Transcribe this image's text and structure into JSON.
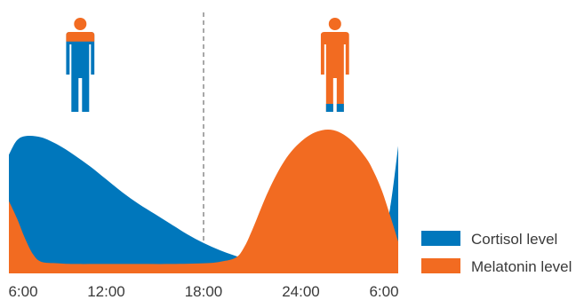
{
  "chart_data": {
    "type": "area",
    "x_ticks": [
      "6:00",
      "12:00",
      "18:00",
      "24:00",
      "6:00"
    ],
    "x_range_hours": [
      6,
      30
    ],
    "marker_hour": 18,
    "series": [
      {
        "name": "Cortisol level",
        "color": "#0077bc",
        "x_hours": [
          6,
          6.5,
          7.1,
          8,
          9,
          10,
          11,
          12,
          13,
          14,
          15,
          16,
          17,
          18,
          19,
          20,
          21,
          22,
          23,
          24,
          25,
          26,
          27,
          27.5,
          28,
          28.5,
          29,
          29.5,
          30
        ],
        "values": [
          82,
          92,
          95,
          94,
          89,
          82,
          74,
          65,
          56,
          48,
          41,
          34,
          27,
          21,
          16,
          12,
          9,
          7,
          6,
          5.5,
          5,
          5,
          5.5,
          6.5,
          9,
          14,
          24,
          45,
          88
        ]
      },
      {
        "name": "Melatonin level",
        "color": "#f26b21",
        "x_hours": [
          6,
          6.5,
          7,
          7.5,
          8,
          9,
          10,
          12,
          14,
          16,
          18,
          19,
          20,
          20.5,
          21,
          22,
          23,
          24,
          25,
          26,
          27,
          28,
          28.5,
          29,
          29.5,
          30
        ],
        "values": [
          50,
          38,
          24,
          13,
          8,
          7,
          6.5,
          6.5,
          6.5,
          6.5,
          7,
          8,
          11,
          18,
          30,
          57,
          78,
          91,
          98,
          99,
          93,
          80,
          70,
          57,
          40,
          22
        ]
      }
    ],
    "icons": [
      {
        "name": "person-cortisol-high-icon",
        "hour": 10.4,
        "fill_top_fraction": 0.12,
        "top_color": "#f26b21",
        "body_color": "#0077bc"
      },
      {
        "name": "person-melatonin-high-icon",
        "hour": 26.1,
        "fill_bottom_fraction": 0.1,
        "top_color": "#f26b21",
        "body_color": "#0077bc"
      }
    ]
  }
}
